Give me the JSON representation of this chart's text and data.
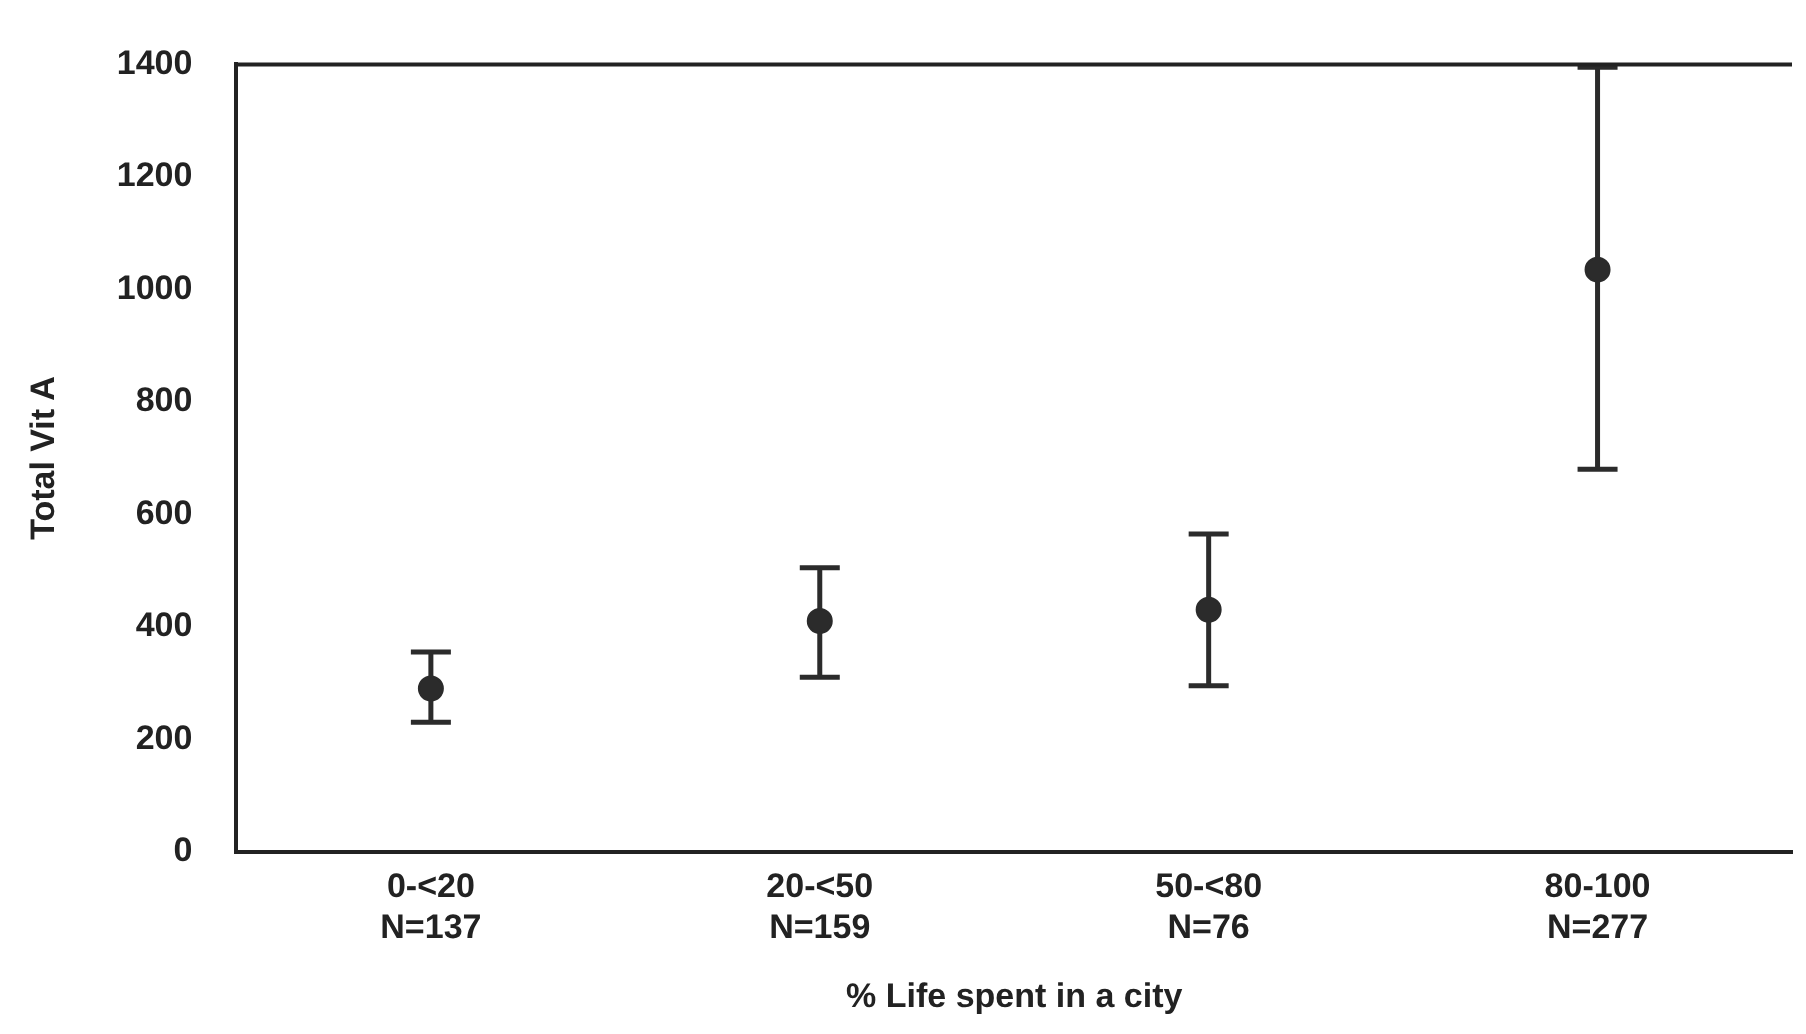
{
  "chart_data": {
    "type": "scatter",
    "xlabel": "% Life spent in a city",
    "ylabel": "Total Vit A",
    "categories": [
      "0-<20\nN=137",
      "20-<50\nN=159",
      "50-<80\nN=76",
      "80-100\nN=277"
    ],
    "values": [
      290,
      410,
      430,
      1035
    ],
    "errors": [
      [
        230,
        355
      ],
      [
        310,
        505
      ],
      [
        295,
        565
      ],
      [
        680,
        1395
      ]
    ],
    "color": "#2b2b2b",
    "marker": "circle",
    "ylim": [
      0,
      1400
    ],
    "yticks": [
      0,
      200,
      400,
      600,
      800,
      1000,
      1200,
      1400
    ],
    "grid": false,
    "legend": false
  }
}
